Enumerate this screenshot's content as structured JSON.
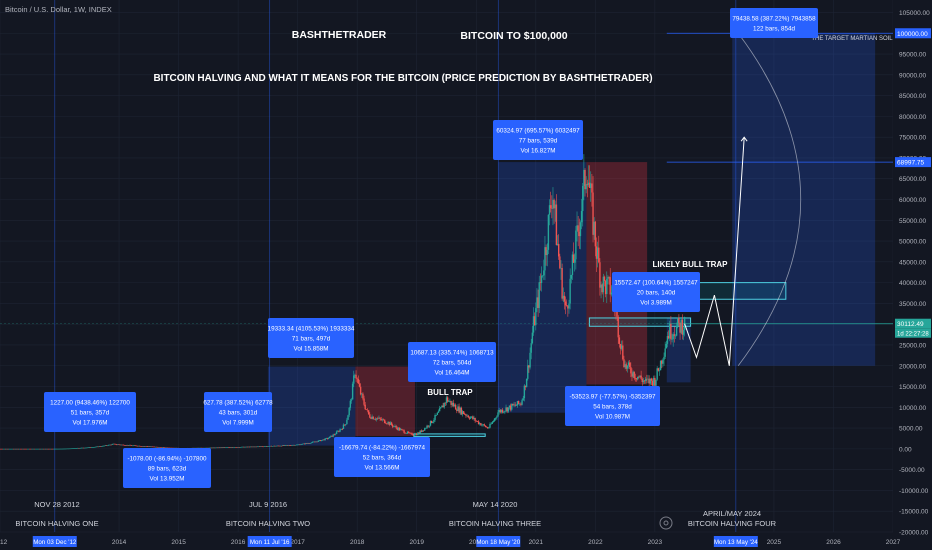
{
  "header": {
    "symbol_line": "Bitcoin / U.S. Dollar, 1W, INDEX"
  },
  "annotations": {
    "author": "BASHTHETRADER",
    "headline": "BITCOIN TO $100,000",
    "subtitle": "BITCOIN HALVING AND WHAT IT MEANS FOR THE BITCOIN (PRICE PREDICTION BY BASHTHETRADER)",
    "bull_trap": "BULL TRAP",
    "likely_bull_trap": "LIKELY BULL TRAP",
    "target_soil": "THE TARGET MARTIAN SOIL"
  },
  "halvings": [
    {
      "date": "NOV 28 2012",
      "label": "BITCOIN HALVING ONE",
      "x_date": "Mon 03 Dec '12"
    },
    {
      "date": "JUL 9 2016",
      "label": "BITCOIN HALVING TWO",
      "x_date": "Mon 11 Jul '16"
    },
    {
      "date": "MAY 14 2020",
      "label": "BITCOIN HALVING THREE",
      "x_date": "Mon 18 May '20"
    },
    {
      "date": "APRIL/MAY 2024",
      "label": "BITCOIN HALVING FOUR",
      "x_date": "Mon 13 May '24"
    }
  ],
  "measure_boxes": [
    {
      "line1": "1227.00 (9438.46%) 122700",
      "line2": "51 bars, 357d",
      "line3": "Vol 17.976M",
      "tone": "up"
    },
    {
      "line1": "-1078.00 (-86.94%) -107800",
      "line2": "89 bars, 623d",
      "line3": "Vol 13.952M",
      "tone": "down"
    },
    {
      "line1": "627.78 (387.52%) 62778",
      "line2": "43 bars, 301d",
      "line3": "Vol 7.999M",
      "tone": "up"
    },
    {
      "line1": "19333.34 (4105.53%) 1933334",
      "line2": "71 bars, 497d",
      "line3": "Vol 15.858M",
      "tone": "up"
    },
    {
      "line1": "-16679.74 (-84.22%) -1667974",
      "line2": "52 bars, 364d",
      "line3": "Vol 13.566M",
      "tone": "down"
    },
    {
      "line1": "10687.13 (335.74%) 1068713",
      "line2": "72 bars, 504d",
      "line3": "Vol 16.464M",
      "tone": "up"
    },
    {
      "line1": "60324.97 (695.57%) 6032497",
      "line2": "77 bars, 539d",
      "line3": "Vol 16.827M",
      "tone": "up"
    },
    {
      "line1": "-53523.97 (-77.57%) -5352397",
      "line2": "54 bars, 378d",
      "line3": "Vol 10.987M",
      "tone": "down"
    },
    {
      "line1": "15572.47 (100.64%) 1557247",
      "line2": "20 bars, 140d",
      "line3": "Vol 3.989M",
      "tone": "up"
    },
    {
      "line1": "79438.58 (387.22%) 7943858",
      "line2": "122 bars, 854d",
      "line3": "",
      "tone": "up"
    }
  ],
  "price_tags": {
    "target": "100000.00",
    "ath": "68997.75",
    "current": "30112.49",
    "countdown": "1d 22:27:28"
  },
  "colors": {
    "background": "#131722",
    "candle_up": "#26a69a",
    "candle_down": "#ef5350",
    "measure_box": "#2962ff",
    "bear_zone": "#f23645",
    "bull_zone": "#2962ff",
    "grid": "#1e2433",
    "text": "#b2b5be"
  },
  "chart_data": {
    "type": "candlestick",
    "title": "Bitcoin / U.S. Dollar, 1W, INDEX",
    "x_axis": {
      "type": "time",
      "range": [
        2012.0,
        2027.0
      ],
      "tick_labels": [
        "2012",
        "2014",
        "2015",
        "2016",
        "2017",
        "2018",
        "2019",
        "2020",
        "2021",
        "2022",
        "2023",
        "2025",
        "2026",
        "2027"
      ],
      "tick_values": [
        2012.0,
        2014.0,
        2015.0,
        2016.0,
        2017.0,
        2018.0,
        2019.0,
        2020.0,
        2021.0,
        2022.0,
        2023.0,
        2025.0,
        2026.0,
        2027.0
      ]
    },
    "y_axis": {
      "range": [
        -20000,
        108000
      ],
      "ticks": [
        -20000,
        -15000,
        -10000,
        -5000,
        0,
        5000,
        10000,
        15000,
        20000,
        25000,
        30000,
        35000,
        40000,
        45000,
        50000,
        55000,
        60000,
        65000,
        70000,
        75000,
        80000,
        85000,
        90000,
        95000,
        100000,
        105000
      ],
      "tick_labels": [
        "-20000.00",
        "-15000.00",
        "-10000.00",
        "-5000.00",
        "0.00",
        "5000.00",
        "10000.00",
        "15000.00",
        "20000.00",
        "25000.00",
        "30000.00",
        "35000.00",
        "40000.00",
        "45000.00",
        "50000.00",
        "55000.00",
        "60000.00",
        "65000.00",
        "70000.00",
        "75000.00",
        "80000.00",
        "85000.00",
        "90000.00",
        "95000.00",
        "100000.00",
        "105000.00"
      ]
    },
    "price_path": [
      [
        2012.0,
        10
      ],
      [
        2012.9,
        13
      ],
      [
        2013.3,
        200
      ],
      [
        2013.9,
        1150
      ],
      [
        2014.5,
        600
      ],
      [
        2015.05,
        180
      ],
      [
        2015.9,
        400
      ],
      [
        2016.52,
        650
      ],
      [
        2017.0,
        1000
      ],
      [
        2017.5,
        2500
      ],
      [
        2017.8,
        6000
      ],
      [
        2017.96,
        19000
      ],
      [
        2018.2,
        8000
      ],
      [
        2018.5,
        6500
      ],
      [
        2018.9,
        3500
      ],
      [
        2019.0,
        3600
      ],
      [
        2019.5,
        12000
      ],
      [
        2019.95,
        7200
      ],
      [
        2020.2,
        5000
      ],
      [
        2020.37,
        9000
      ],
      [
        2020.75,
        11000
      ],
      [
        2020.95,
        29000
      ],
      [
        2021.08,
        40000
      ],
      [
        2021.28,
        63000
      ],
      [
        2021.5,
        33000
      ],
      [
        2021.65,
        47000
      ],
      [
        2021.86,
        69000
      ],
      [
        2022.1,
        40000
      ],
      [
        2022.3,
        38000
      ],
      [
        2022.5,
        20000
      ],
      [
        2022.85,
        16000
      ],
      [
        2023.0,
        16500
      ],
      [
        2023.22,
        28000
      ],
      [
        2023.5,
        30112
      ]
    ],
    "projection": [
      [
        2023.5,
        30112
      ],
      [
        2023.7,
        22000
      ],
      [
        2024.0,
        37000
      ],
      [
        2024.25,
        20000
      ],
      [
        2024.5,
        75000
      ]
    ],
    "halving_dates": [
      2012.92,
      2016.53,
      2020.37,
      2024.36
    ],
    "horizontal_levels": [
      100000,
      68997.75,
      30112.49
    ],
    "zones": [
      {
        "kind": "bull",
        "x": [
          2016.5,
          2017.97
        ],
        "y": [
          780,
          19800
        ]
      },
      {
        "kind": "bear",
        "x": [
          2017.97,
          2018.97
        ],
        "y": [
          3100,
          19800
        ]
      },
      {
        "kind": "bull",
        "x": [
          2020.37,
          2021.85
        ],
        "y": [
          8700,
          69000
        ]
      },
      {
        "kind": "bear",
        "x": [
          2021.85,
          2022.87
        ],
        "y": [
          15500,
          69000
        ]
      },
      {
        "kind": "bull",
        "x": [
          2024.3,
          2026.7
        ],
        "y": [
          20000,
          100000
        ]
      },
      {
        "kind": "bull",
        "x": [
          2023.2,
          2023.6
        ],
        "y": [
          16000,
          31500
        ]
      }
    ],
    "highlight_boxes": [
      {
        "x": [
          2022.9,
          2025.2
        ],
        "y": [
          36000,
          40000
        ]
      },
      {
        "x": [
          2021.9,
          2023.6
        ],
        "y": [
          29500,
          31500
        ]
      },
      {
        "x": [
          2018.95,
          2020.15
        ],
        "y": [
          3000,
          3600
        ]
      }
    ]
  }
}
